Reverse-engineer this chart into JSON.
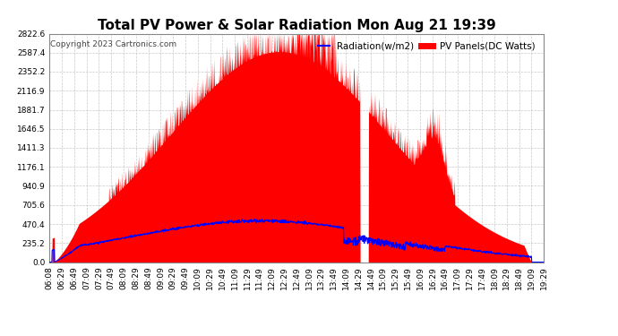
{
  "title": "Total PV Power & Solar Radiation Mon Aug 21 19:39",
  "copyright": "Copyright 2023 Cartronics.com",
  "legend_radiation": "Radiation(w/m2)",
  "legend_pv": "PV Panels(DC Watts)",
  "legend_color_radiation": "#0000ff",
  "legend_color_pv": "#ff0000",
  "yticks": [
    0.0,
    235.2,
    470.4,
    705.6,
    940.9,
    1176.1,
    1411.3,
    1646.5,
    1881.7,
    2116.9,
    2352.2,
    2587.4,
    2822.6
  ],
  "xtick_labels": [
    "06:08",
    "06:29",
    "06:49",
    "07:09",
    "07:29",
    "07:49",
    "08:09",
    "08:29",
    "08:49",
    "09:09",
    "09:29",
    "09:49",
    "10:09",
    "10:29",
    "10:49",
    "11:09",
    "11:29",
    "11:49",
    "12:09",
    "12:29",
    "12:49",
    "13:09",
    "13:29",
    "13:49",
    "14:09",
    "14:29",
    "14:49",
    "15:09",
    "15:29",
    "15:49",
    "16:09",
    "16:29",
    "16:49",
    "17:09",
    "17:29",
    "17:49",
    "18:09",
    "18:29",
    "18:49",
    "19:09",
    "19:29"
  ],
  "background_color": "#ffffff",
  "grid_color": "#bbbbbb",
  "title_fontsize": 11,
  "tick_fontsize": 6.5,
  "copyright_fontsize": 6.5,
  "legend_fontsize": 7.5,
  "ymax": 2822.6,
  "ymin": 0.0
}
